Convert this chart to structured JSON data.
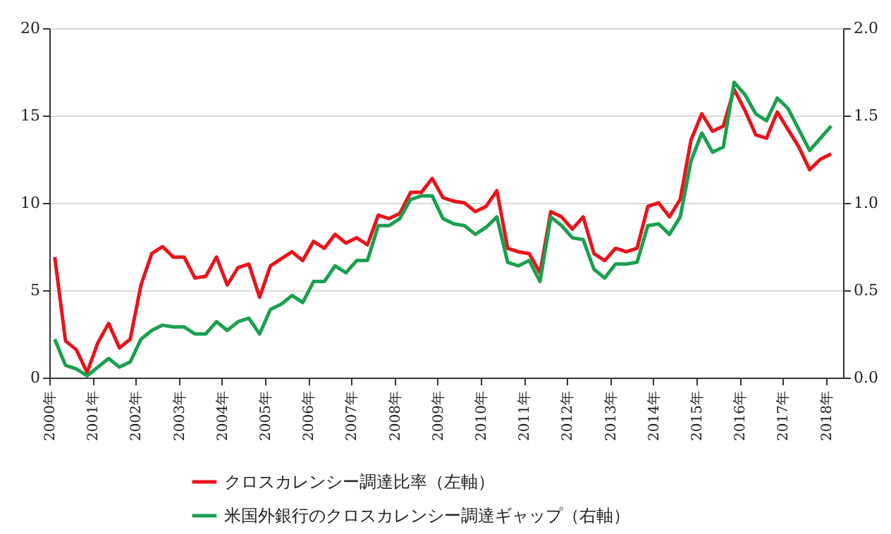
{
  "chart_data": {
    "type": "line",
    "x": [
      2000.125,
      2000.375,
      2000.625,
      2000.875,
      2001.125,
      2001.375,
      2001.625,
      2001.875,
      2002.125,
      2002.375,
      2002.625,
      2002.875,
      2003.125,
      2003.375,
      2003.625,
      2003.875,
      2004.125,
      2004.375,
      2004.625,
      2004.875,
      2005.125,
      2005.375,
      2005.625,
      2005.875,
      2006.125,
      2006.375,
      2006.625,
      2006.875,
      2007.125,
      2007.375,
      2007.625,
      2007.875,
      2008.125,
      2008.375,
      2008.625,
      2008.875,
      2009.125,
      2009.375,
      2009.625,
      2009.875,
      2010.125,
      2010.375,
      2010.625,
      2010.875,
      2011.125,
      2011.375,
      2011.625,
      2011.875,
      2012.125,
      2012.375,
      2012.625,
      2012.875,
      2013.125,
      2013.375,
      2013.625,
      2013.875,
      2014.125,
      2014.375,
      2014.625,
      2014.875,
      2015.125,
      2015.375,
      2015.625,
      2015.875,
      2016.125,
      2016.375,
      2016.625,
      2016.875,
      2017.125,
      2017.375,
      2017.625,
      2017.875,
      2018.125
    ],
    "series": [
      {
        "name": "クロスカレンシー調達比率（左軸）",
        "color": "#e8141c",
        "values": [
          6.9,
          2.1,
          1.6,
          0.3,
          2.0,
          3.1,
          1.7,
          2.2,
          5.3,
          7.1,
          7.5,
          6.9,
          6.9,
          5.7,
          5.8,
          6.9,
          5.3,
          6.3,
          6.5,
          4.6,
          6.4,
          6.8,
          7.2,
          6.7,
          7.8,
          7.4,
          8.2,
          7.7,
          8.0,
          7.6,
          9.3,
          9.1,
          9.4,
          10.6,
          10.6,
          11.4,
          10.3,
          10.1,
          10.0,
          9.5,
          9.8,
          10.7,
          7.4,
          7.2,
          7.1,
          6.0,
          9.5,
          9.2,
          8.5,
          9.2,
          7.1,
          6.7,
          7.4,
          7.2,
          7.4,
          9.8,
          10.0,
          9.2,
          10.2,
          13.6,
          15.1,
          14.1,
          14.4,
          16.5,
          15.3,
          13.9,
          13.7,
          15.2,
          14.2,
          13.2,
          11.9,
          12.5,
          12.8
        ]
      },
      {
        "name": "米国外銀行のクロスカレンシー調達ギャップ（右軸）",
        "color": "#1aa050",
        "axis": "y2",
        "values": [
          0.22,
          0.07,
          0.05,
          0.01,
          0.06,
          0.11,
          0.06,
          0.09,
          0.22,
          0.27,
          0.3,
          0.29,
          0.29,
          0.25,
          0.25,
          0.32,
          0.27,
          0.32,
          0.34,
          0.25,
          0.39,
          0.42,
          0.47,
          0.43,
          0.55,
          0.55,
          0.64,
          0.6,
          0.67,
          0.67,
          0.87,
          0.87,
          0.91,
          1.02,
          1.04,
          1.04,
          0.91,
          0.88,
          0.87,
          0.82,
          0.86,
          0.92,
          0.66,
          0.64,
          0.67,
          0.55,
          0.92,
          0.87,
          0.8,
          0.79,
          0.62,
          0.57,
          0.65,
          0.65,
          0.66,
          0.87,
          0.88,
          0.82,
          0.92,
          1.24,
          1.4,
          1.29,
          1.32,
          1.69,
          1.62,
          1.51,
          1.47,
          1.6,
          1.54,
          1.42,
          1.3,
          1.37,
          1.44
        ]
      }
    ],
    "xlim": [
      2000,
      2018.4
    ],
    "xticks": [
      {
        "value": 2000,
        "label": "2000年"
      },
      {
        "value": 2001,
        "label": "2001年"
      },
      {
        "value": 2002,
        "label": "2002年"
      },
      {
        "value": 2003,
        "label": "2003年"
      },
      {
        "value": 2004,
        "label": "2004年"
      },
      {
        "value": 2005,
        "label": "2005年"
      },
      {
        "value": 2006,
        "label": "2006年"
      },
      {
        "value": 2007,
        "label": "2007年"
      },
      {
        "value": 2008,
        "label": "2008年"
      },
      {
        "value": 2009,
        "label": "2009年"
      },
      {
        "value": 2010,
        "label": "2010年"
      },
      {
        "value": 2011,
        "label": "2011年"
      },
      {
        "value": 2012,
        "label": "2012年"
      },
      {
        "value": 2013,
        "label": "2013年"
      },
      {
        "value": 2014,
        "label": "2014年"
      },
      {
        "value": 2015,
        "label": "2015年"
      },
      {
        "value": 2016,
        "label": "2016年"
      },
      {
        "value": 2017,
        "label": "2017年"
      },
      {
        "value": 2018,
        "label": "2018年"
      }
    ],
    "ylim": [
      0,
      20
    ],
    "yticks": [
      0,
      5,
      10,
      15,
      20
    ],
    "y2lim": [
      0,
      2
    ],
    "y2ticks": [
      {
        "value": 0,
        "label": "0.0"
      },
      {
        "value": 0.5,
        "label": "0.5"
      },
      {
        "value": 1,
        "label": "1.0"
      },
      {
        "value": 1.5,
        "label": "1.5"
      },
      {
        "value": 2,
        "label": "2.0"
      }
    ],
    "grid": "y",
    "legend": "bottom"
  }
}
